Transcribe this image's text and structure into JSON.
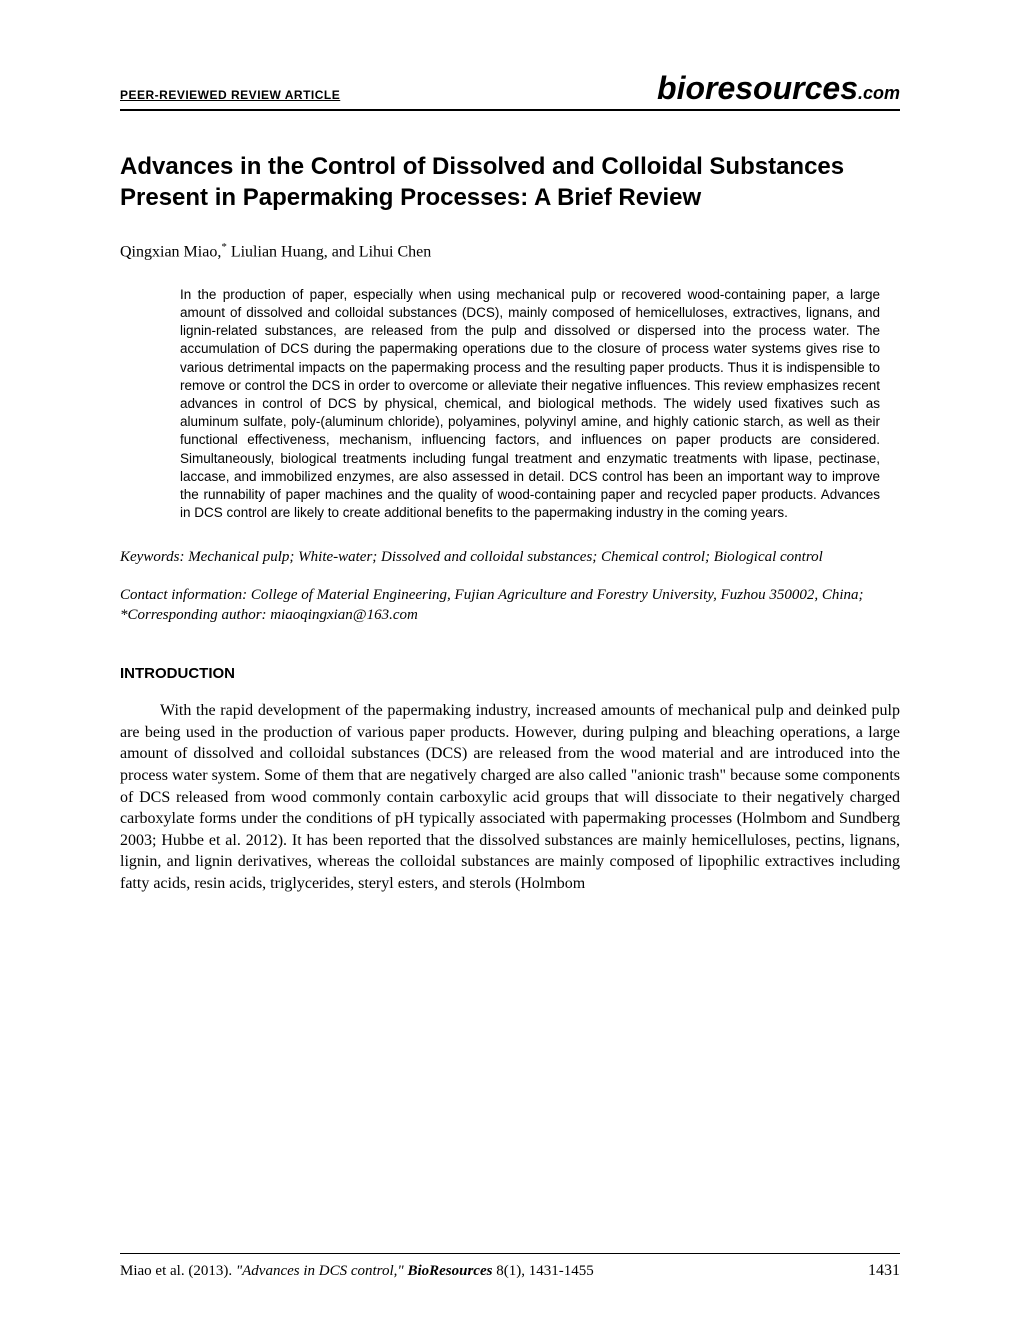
{
  "header": {
    "peer_reviewed": "PEER-REVIEWED REVIEW ARTICLE",
    "journal_main": "bioresources",
    "journal_suffix": ".com"
  },
  "title": "Advances in the Control of Dissolved and Colloidal Substances Present in Papermaking Processes: A Brief Review",
  "authors_html": "Qingxian Miao,<sup>*</sup> Liulian Huang, and Lihui Chen",
  "abstract": "In the production of paper, especially when using mechanical pulp or recovered wood-containing paper, a large amount of dissolved and colloidal substances (DCS), mainly composed of hemicelluloses, extractives, lignans, and lignin-related substances, are released from the pulp and dissolved or dispersed into the process water. The accumulation of DCS during the papermaking operations due to the closure of process water systems gives rise to various detrimental impacts on the papermaking process and the resulting paper products. Thus it is indispensible to remove or control the DCS in order to overcome or alleviate their negative influences. This review emphasizes recent advances in control of DCS by physical, chemical, and biological methods. The widely used fixatives such as aluminum sulfate, poly-(aluminum chloride), polyamines, polyvinyl amine, and highly cationic starch, as well as their functional effectiveness, mechanism, influencing factors, and influences on paper products are considered. Simultaneously, biological treatments including fungal treatment and enzymatic treatments with lipase, pectinase, laccase, and immobilized enzymes, are also assessed in detail. DCS control has been an important way to improve the runnability of paper machines and the quality of wood-containing paper and recycled paper products. Advances in DCS control are likely to create additional benefits to the papermaking industry in the coming years.",
  "keywords": "Keywords: Mechanical pulp; White-water; Dissolved and colloidal substances; Chemical control; Biological control",
  "contact": "Contact information:  College of Material Engineering, Fujian Agriculture and Forestry University, Fuzhou 350002, China; *Corresponding author: miaoqingxian@163.com",
  "section_heading": "INTRODUCTION",
  "body_paragraph": "With the rapid development of the papermaking industry, increased amounts of mechanical pulp and deinked pulp are being used in the production of various paper products. However, during pulping and bleaching operations, a large amount of dissolved and colloidal substances (DCS) are released from the wood material and are introduced into the process water system. Some of them that are negatively charged are also called \"anionic trash\" because some components of DCS released from wood commonly contain carboxylic acid groups that will dissociate to their negatively charged carboxylate forms under the conditions of pH typically associated with papermaking processes (Holmbom and Sundberg 2003; Hubbe et al. 2012). It has been reported that the dissolved substances are mainly hemicelluloses, pectins, lignans, lignin, and lignin derivatives, whereas the colloidal substances are mainly composed of lipophilic extractives including fatty acids, resin acids, triglycerides, steryl esters, and sterols (Holmbom",
  "footer": {
    "authors": "Miao et al.",
    "year": "(2013).",
    "citation": "\"Advances in DCS control,\"",
    "journal": "BioResources",
    "issue": "8(1), 1431-1455",
    "page": "1431"
  }
}
